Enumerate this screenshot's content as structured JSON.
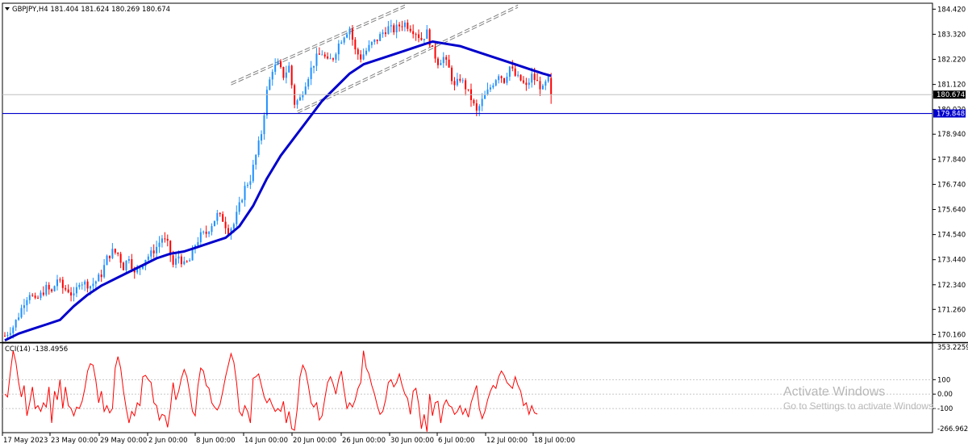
{
  "window": {
    "symbol_header": "GBPJPY,H4  181.404 181.624 180.269 180.674",
    "indicator_header": "CCI(14) -138.4956"
  },
  "watermark": {
    "line1": "Activate Windows",
    "line2": "Go to Settings to activate Windows."
  },
  "colors": {
    "bull": "#1e90ff",
    "bear": "#ff0000",
    "ma": "#0000cc",
    "hline": "#0000cc",
    "cci": "#ff0000",
    "grid_dotted": "#c8c8c8",
    "channel": "#808080"
  },
  "chart_data": [
    {
      "type": "candlestick",
      "title": "GBPJPY,H4",
      "ohlc_last": {
        "open": 181.404,
        "high": 181.624,
        "low": 180.269,
        "close": 180.674
      },
      "price_labels": [
        "184.420",
        "183.320",
        "182.220",
        "181.120",
        "180.020",
        "178.940",
        "177.840",
        "176.740",
        "175.640",
        "174.540",
        "173.440",
        "172.340",
        "171.260",
        "170.160"
      ],
      "price_ticks": [
        184.42,
        183.32,
        182.22,
        181.12,
        180.02,
        178.94,
        177.84,
        176.74,
        175.64,
        174.54,
        173.44,
        172.34,
        171.26,
        170.16
      ],
      "ylim": [
        169.82,
        184.68
      ],
      "x_labels": [
        "17 May 2023",
        "23 May 00:00",
        "29 May 00:00",
        "2 Jun 00:00",
        "8 Jun 00:00",
        "14 Jun 00:00",
        "20 Jun 00:00",
        "26 Jun 00:00",
        "30 Jun 00:00",
        "6 Jul 00:00",
        "12 Jul 00:00",
        "18 Jul 00:00"
      ],
      "current_price": {
        "value": 180.674,
        "label": "180.674"
      },
      "horizontal_line": {
        "value": 179.848,
        "label": "179.848"
      },
      "close_path": [
        [
          0,
          170.1
        ],
        [
          3,
          170.5
        ],
        [
          5,
          171.0
        ],
        [
          7,
          171.6
        ],
        [
          9,
          172.0
        ],
        [
          11,
          171.6
        ],
        [
          13,
          171.9
        ],
        [
          15,
          172.2
        ],
        [
          17,
          172.0
        ],
        [
          19,
          172.6
        ],
        [
          21,
          172.2
        ],
        [
          23,
          172.1
        ],
        [
          25,
          171.8
        ],
        [
          27,
          172.5
        ],
        [
          29,
          172.4
        ],
        [
          31,
          172.3
        ],
        [
          33,
          172.5
        ],
        [
          35,
          172.8
        ],
        [
          37,
          173.5
        ],
        [
          39,
          173.8
        ],
        [
          41,
          173.7
        ],
        [
          43,
          173.1
        ],
        [
          45,
          173.6
        ],
        [
          47,
          172.8
        ],
        [
          49,
          173.1
        ],
        [
          51,
          173.5
        ],
        [
          53,
          173.7
        ],
        [
          55,
          174.0
        ],
        [
          57,
          174.4
        ],
        [
          59,
          174.1
        ],
        [
          61,
          173.2
        ],
        [
          63,
          173.6
        ],
        [
          65,
          173.2
        ],
        [
          67,
          173.4
        ],
        [
          69,
          174.1
        ],
        [
          71,
          174.5
        ],
        [
          73,
          174.6
        ],
        [
          75,
          175.0
        ],
        [
          77,
          175.4
        ],
        [
          79,
          175.2
        ],
        [
          81,
          174.7
        ],
        [
          83,
          175.0
        ],
        [
          85,
          175.8
        ],
        [
          87,
          176.6
        ],
        [
          89,
          177.0
        ],
        [
          91,
          178.0
        ],
        [
          93,
          179.0
        ],
        [
          95,
          180.8
        ],
        [
          97,
          181.8
        ],
        [
          99,
          182.0
        ],
        [
          101,
          181.5
        ],
        [
          103,
          181.9
        ],
        [
          105,
          180.3
        ],
        [
          107,
          180.5
        ],
        [
          109,
          181.2
        ],
        [
          111,
          181.8
        ],
        [
          113,
          182.3
        ],
        [
          115,
          182.5
        ],
        [
          117,
          182.1
        ],
        [
          119,
          182.3
        ],
        [
          121,
          182.9
        ],
        [
          123,
          183.3
        ],
        [
          125,
          183.6
        ],
        [
          127,
          182.6
        ],
        [
          129,
          182.3
        ],
        [
          131,
          182.6
        ],
        [
          133,
          182.9
        ],
        [
          135,
          183.1
        ],
        [
          137,
          183.4
        ],
        [
          139,
          183.6
        ],
        [
          141,
          183.5
        ],
        [
          143,
          183.7
        ],
        [
          145,
          183.8
        ],
        [
          147,
          183.6
        ],
        [
          149,
          183.4
        ],
        [
          151,
          183.1
        ],
        [
          153,
          183.4
        ],
        [
          155,
          182.6
        ],
        [
          157,
          182.1
        ],
        [
          159,
          182.3
        ],
        [
          161,
          181.8
        ],
        [
          163,
          181.0
        ],
        [
          165,
          181.4
        ],
        [
          167,
          181.0
        ],
        [
          169,
          180.5
        ],
        [
          171,
          179.9
        ],
        [
          173,
          180.4
        ],
        [
          175,
          180.8
        ],
        [
          177,
          181.2
        ],
        [
          179,
          181.6
        ],
        [
          181,
          181.3
        ],
        [
          183,
          181.9
        ],
        [
          185,
          181.5
        ],
        [
          187,
          181.3
        ],
        [
          189,
          181.0
        ],
        [
          191,
          181.5
        ],
        [
          193,
          181.2
        ],
        [
          195,
          180.9
        ],
        [
          197,
          181.4
        ],
        [
          198,
          180.674
        ]
      ],
      "ma_path": [
        [
          0,
          169.9
        ],
        [
          5,
          170.2
        ],
        [
          10,
          170.4
        ],
        [
          15,
          170.6
        ],
        [
          20,
          170.8
        ],
        [
          25,
          171.4
        ],
        [
          30,
          171.9
        ],
        [
          35,
          172.3
        ],
        [
          40,
          172.6
        ],
        [
          45,
          172.9
        ],
        [
          50,
          173.2
        ],
        [
          55,
          173.5
        ],
        [
          60,
          173.7
        ],
        [
          65,
          173.8
        ],
        [
          70,
          174.0
        ],
        [
          75,
          174.2
        ],
        [
          80,
          174.4
        ],
        [
          85,
          174.9
        ],
        [
          90,
          175.8
        ],
        [
          95,
          177.0
        ],
        [
          100,
          178.0
        ],
        [
          105,
          178.8
        ],
        [
          110,
          179.6
        ],
        [
          115,
          180.4
        ],
        [
          120,
          181.0
        ],
        [
          125,
          181.6
        ],
        [
          130,
          182.0
        ],
        [
          135,
          182.2
        ],
        [
          140,
          182.4
        ],
        [
          145,
          182.6
        ],
        [
          150,
          182.8
        ],
        [
          155,
          183.0
        ],
        [
          160,
          182.9
        ],
        [
          165,
          182.8
        ],
        [
          170,
          182.6
        ],
        [
          175,
          182.4
        ],
        [
          180,
          182.2
        ],
        [
          185,
          182.0
        ],
        [
          190,
          181.8
        ],
        [
          195,
          181.6
        ],
        [
          198,
          181.5
        ]
      ],
      "channel_lines": [
        {
          "p1": [
            82,
            181.2
          ],
          "p2": [
            145,
            184.6
          ]
        },
        {
          "p1": [
            82,
            181.1
          ],
          "p2": [
            145,
            184.5
          ]
        },
        {
          "p1": [
            106,
            179.95
          ],
          "p2": [
            186,
            184.6
          ]
        },
        {
          "p1": [
            106,
            179.85
          ],
          "p2": [
            186,
            184.5
          ]
        }
      ]
    },
    {
      "type": "line",
      "title": "CCI(14) -138.4956",
      "value_labels": [
        "353.2259",
        "100",
        "0.00",
        "-100",
        "-266.9623"
      ],
      "value_ticks": [
        353.2259,
        100,
        0,
        -100,
        -266.9623
      ],
      "ylim": [
        -266.9623,
        353.2259
      ],
      "dotted_levels": [
        100,
        0,
        -100
      ],
      "series": [
        {
          "values": [
            0,
            -20,
            150,
            300,
            220,
            80,
            -20,
            60,
            -150,
            -60,
            50,
            -100,
            -80,
            -120,
            -60,
            -90,
            50,
            -200,
            20,
            -40,
            100,
            -100,
            50,
            -80,
            -100,
            -150,
            -90,
            -100,
            -50,
            40,
            160,
            210,
            200,
            90,
            -60,
            20,
            -120,
            -80,
            -130,
            -100,
            180,
            260,
            180,
            20,
            -100,
            -200,
            -120,
            -150,
            -60,
            -80,
            120,
            130,
            100,
            80,
            -60,
            -80,
            -180,
            -140,
            -150,
            -230,
            -100,
            80,
            -40,
            20,
            110,
            170,
            120,
            10,
            -120,
            -150,
            60,
            180,
            160,
            60,
            40,
            -60,
            -90,
            -110,
            -70,
            20,
            120,
            200,
            280,
            220,
            80,
            -120,
            -150,
            -80,
            -120,
            -200,
            110,
            120,
            140,
            60,
            -20,
            -60,
            -30,
            -80,
            -120,
            -100,
            -120,
            -50,
            -200,
            -120,
            -240,
            -250,
            -100,
            120,
            200,
            160,
            60,
            -60,
            -90,
            -60,
            -180,
            -150,
            -30,
            80,
            120,
            70,
            0,
            100,
            160,
            20,
            -100,
            -60,
            -90,
            -40,
            40,
            80,
            300,
            180,
            140,
            60,
            0,
            -80,
            -140,
            -120,
            -40,
            80,
            100,
            50,
            80,
            140,
            60,
            0,
            -30,
            -140,
            20,
            40,
            -70,
            -240,
            -140,
            -260,
            0,
            -150,
            -60,
            -50,
            -200,
            -80,
            -40,
            -80,
            -90,
            -140,
            -120,
            -80,
            -140,
            -100,
            -160,
            -60,
            0,
            60,
            -100,
            -170,
            -120,
            -40,
            20,
            60,
            40,
            120,
            160,
            130,
            80,
            60,
            40,
            120,
            60,
            20,
            -80,
            -60,
            -140,
            -80,
            -130,
            -138.5
          ]
        }
      ]
    }
  ]
}
